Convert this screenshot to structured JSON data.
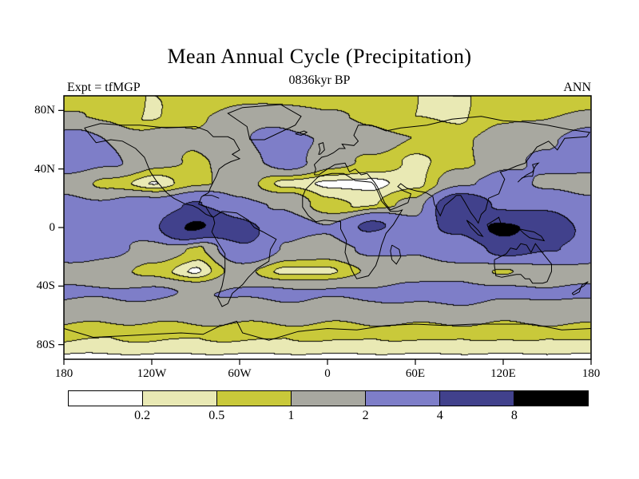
{
  "figure": {
    "title": "Mean Annual Cycle (Precipitation)",
    "subtitle": "0836kyr BP",
    "experiment_label": "Expt = tfMGP",
    "season_label": "ANN"
  },
  "axes": {
    "lat_ticks": [
      {
        "label": "80N",
        "lat": 80
      },
      {
        "label": "40N",
        "lat": 40
      },
      {
        "label": "0",
        "lat": 0
      },
      {
        "label": "40S",
        "lat": -40
      },
      {
        "label": "80S",
        "lat": -80
      }
    ],
    "lon_ticks": [
      {
        "label": "180",
        "lon": -180
      },
      {
        "label": "120W",
        "lon": -120
      },
      {
        "label": "60W",
        "lon": -60
      },
      {
        "label": "0",
        "lon": 0
      },
      {
        "label": "60E",
        "lon": 60
      },
      {
        "label": "120E",
        "lon": 120
      },
      {
        "label": "180",
        "lon": 180
      }
    ]
  },
  "colorbar": {
    "labels": [
      "0.2",
      "0.5",
      "1",
      "2",
      "4",
      "8"
    ]
  },
  "chart_data": {
    "type": "heatmap",
    "title": "Mean Annual Cycle (Precipitation)",
    "subtitle": "0836kyr BP",
    "experiment": "tfMGP",
    "season": "ANN",
    "projection": "equirectangular",
    "lon_range": [
      -180,
      180
    ],
    "lat_range": [
      -90,
      90
    ],
    "levels": [
      0.2,
      0.5,
      1,
      2,
      4,
      8
    ],
    "colors": [
      "#ffffff",
      "#e9e9b4",
      "#c9c93a",
      "#a8a8a0",
      "#7e7ec8",
      "#41418c",
      "#000000"
    ],
    "grid": {
      "lons": [
        -180,
        -150,
        -120,
        -90,
        -60,
        -30,
        0,
        30,
        60,
        90,
        120,
        150,
        180
      ],
      "lats": [
        90,
        75,
        60,
        45,
        30,
        15,
        0,
        -15,
        -30,
        -45,
        -60,
        -75,
        -90
      ],
      "values": [
        [
          0.55,
          0.5,
          0.5,
          0.6,
          0.7,
          0.7,
          0.6,
          0.5,
          0.5,
          0.5,
          0.5,
          0.55,
          0.55
        ],
        [
          1.1,
          0.9,
          0.45,
          0.9,
          1.4,
          1.6,
          1.1,
          0.9,
          0.5,
          0.45,
          0.9,
          1.0,
          1.1
        ],
        [
          2.6,
          2.0,
          1.4,
          1.1,
          1.8,
          2.6,
          1.9,
          1.4,
          1.0,
          0.9,
          1.2,
          1.8,
          2.6
        ],
        [
          2.9,
          2.2,
          1.3,
          0.9,
          1.4,
          2.6,
          1.4,
          0.8,
          0.4,
          0.8,
          1.6,
          2.4,
          2.9
        ],
        [
          1.4,
          0.8,
          0.18,
          0.9,
          1.3,
          0.35,
          0.15,
          0.12,
          0.4,
          1.8,
          2.6,
          1.7,
          1.4
        ],
        [
          2.6,
          2.2,
          2.8,
          4.2,
          2.4,
          1.9,
          0.7,
          0.4,
          1.3,
          6.0,
          3.8,
          3.2,
          2.6
        ],
        [
          3.2,
          2.6,
          3.4,
          8.6,
          5.2,
          2.6,
          2.1,
          4.4,
          3.1,
          4.6,
          9.0,
          6.2,
          3.2
        ],
        [
          2.8,
          2.4,
          1.4,
          0.9,
          3.6,
          1.9,
          1.4,
          2.4,
          2.1,
          3.1,
          4.6,
          4.2,
          2.8
        ],
        [
          1.6,
          1.3,
          0.8,
          0.15,
          1.3,
          0.4,
          0.4,
          1.1,
          1.3,
          1.6,
          0.9,
          1.6,
          1.6
        ],
        [
          2.2,
          2.1,
          2.3,
          1.9,
          2.1,
          2.3,
          2.1,
          2.2,
          2.6,
          2.6,
          2.3,
          2.1,
          2.2
        ],
        [
          1.3,
          1.2,
          1.2,
          1.3,
          1.2,
          1.3,
          1.2,
          1.3,
          1.3,
          1.3,
          1.2,
          1.3,
          1.3
        ],
        [
          0.55,
          0.5,
          0.55,
          0.5,
          0.55,
          0.5,
          0.55,
          0.5,
          0.55,
          0.5,
          0.55,
          0.5,
          0.55
        ],
        [
          0.15,
          0.15,
          0.15,
          0.15,
          0.15,
          0.15,
          0.15,
          0.15,
          0.15,
          0.15,
          0.15,
          0.15,
          0.15
        ]
      ]
    },
    "coastlines": [
      [
        [
          -166,
          68
        ],
        [
          -158,
          58
        ],
        [
          -148,
          60
        ],
        [
          -140,
          59
        ],
        [
          -131,
          54
        ],
        [
          -125,
          48
        ],
        [
          -121,
          38
        ],
        [
          -117,
          32
        ],
        [
          -110,
          24
        ],
        [
          -105,
          20
        ],
        [
          -97,
          16
        ],
        [
          -92,
          15
        ],
        [
          -88,
          13
        ],
        [
          -83,
          9
        ],
        [
          -78,
          7
        ],
        [
          -80,
          9
        ],
        [
          -83,
          14
        ],
        [
          -88,
          16
        ],
        [
          -86,
          21
        ],
        [
          -81,
          24
        ],
        [
          -80,
          27
        ],
        [
          -76,
          35
        ],
        [
          -74,
          40
        ],
        [
          -70,
          43
        ],
        [
          -66,
          45
        ],
        [
          -60,
          47
        ],
        [
          -65,
          50
        ],
        [
          -60,
          53
        ],
        [
          -64,
          60
        ],
        [
          -68,
          62
        ],
        [
          -78,
          62
        ],
        [
          -82,
          66
        ],
        [
          -90,
          69
        ],
        [
          -110,
          68
        ],
        [
          -128,
          70
        ],
        [
          -140,
          70
        ],
        [
          -155,
          71
        ],
        [
          -166,
          68
        ]
      ],
      [
        [
          -53,
          60
        ],
        [
          -43,
          60
        ],
        [
          -22,
          70
        ],
        [
          -18,
          76
        ],
        [
          -32,
          84
        ],
        [
          -58,
          82
        ],
        [
          -68,
          78
        ],
        [
          -55,
          69
        ],
        [
          -53,
          60
        ]
      ],
      [
        [
          -78,
          7
        ],
        [
          -72,
          11
        ],
        [
          -62,
          10
        ],
        [
          -54,
          5
        ],
        [
          -50,
          0
        ],
        [
          -44,
          -3
        ],
        [
          -35,
          -8
        ],
        [
          -39,
          -15
        ],
        [
          -40,
          -23
        ],
        [
          -48,
          -28
        ],
        [
          -54,
          -34
        ],
        [
          -58,
          -39
        ],
        [
          -65,
          -45
        ],
        [
          -68,
          -52
        ],
        [
          -72,
          -54
        ],
        [
          -75,
          -48
        ],
        [
          -72,
          -40
        ],
        [
          -70,
          -30
        ],
        [
          -70,
          -18
        ],
        [
          -75,
          -10
        ],
        [
          -79,
          -3
        ],
        [
          -77,
          3
        ],
        [
          -78,
          7
        ]
      ],
      [
        [
          -9,
          36
        ],
        [
          -8,
          40
        ],
        [
          -9,
          43
        ],
        [
          -4,
          48
        ],
        [
          0,
          49
        ],
        [
          4,
          51
        ],
        [
          8,
          54
        ],
        [
          12,
          54
        ],
        [
          10,
          57
        ],
        [
          18,
          56
        ],
        [
          21,
          59
        ],
        [
          18,
          63
        ],
        [
          21,
          70
        ],
        [
          30,
          70
        ],
        [
          40,
          66
        ],
        [
          50,
          68
        ],
        [
          68,
          70
        ],
        [
          85,
          74
        ],
        [
          105,
          76
        ],
        [
          120,
          73
        ],
        [
          135,
          72
        ],
        [
          150,
          70
        ],
        [
          165,
          67
        ],
        [
          179,
          65
        ],
        [
          177,
          62
        ],
        [
          162,
          61
        ],
        [
          157,
          53
        ],
        [
          151,
          59
        ],
        [
          143,
          55
        ],
        [
          135,
          44
        ],
        [
          129,
          42
        ],
        [
          122,
          39
        ],
        [
          118,
          38
        ],
        [
          121,
          33
        ],
        [
          117,
          23
        ],
        [
          110,
          20
        ],
        [
          108,
          12
        ],
        [
          105,
          9
        ],
        [
          103,
          3
        ],
        [
          101,
          6
        ],
        [
          98,
          10
        ],
        [
          94,
          17
        ],
        [
          91,
          22
        ],
        [
          88,
          22
        ],
        [
          86,
          20
        ],
        [
          80,
          15
        ],
        [
          77,
          8
        ],
        [
          73,
          16
        ],
        [
          72,
          21
        ],
        [
          67,
          24
        ],
        [
          61,
          25
        ],
        [
          57,
          26
        ],
        [
          54,
          27
        ],
        [
          50,
          30
        ],
        [
          48,
          28
        ],
        [
          52,
          25
        ],
        [
          57,
          23
        ],
        [
          55,
          17
        ],
        [
          48,
          14
        ],
        [
          43,
          12
        ],
        [
          39,
          17
        ],
        [
          34,
          28
        ],
        [
          32,
          31
        ],
        [
          27,
          37
        ],
        [
          23,
          36
        ],
        [
          19,
          40
        ],
        [
          15,
          38
        ],
        [
          12,
          44
        ],
        [
          5,
          43
        ],
        [
          0,
          40
        ],
        [
          -6,
          36
        ],
        [
          -9,
          36
        ]
      ],
      [
        [
          -6,
          35
        ],
        [
          3,
          37
        ],
        [
          11,
          37
        ],
        [
          19,
          32
        ],
        [
          30,
          31
        ],
        [
          32,
          29
        ],
        [
          35,
          23
        ],
        [
          37,
          18
        ],
        [
          43,
          11
        ],
        [
          48,
          11
        ],
        [
          51,
          12
        ],
        [
          45,
          2
        ],
        [
          40,
          -4
        ],
        [
          37,
          -12
        ],
        [
          35,
          -20
        ],
        [
          33,
          -26
        ],
        [
          28,
          -33
        ],
        [
          20,
          -35
        ],
        [
          17,
          -30
        ],
        [
          14,
          -23
        ],
        [
          12,
          -17
        ],
        [
          13,
          -9
        ],
        [
          9,
          -1
        ],
        [
          9,
          4
        ],
        [
          -2,
          5
        ],
        [
          -8,
          4
        ],
        [
          -13,
          8
        ],
        [
          -17,
          14
        ],
        [
          -17,
          21
        ],
        [
          -15,
          26
        ],
        [
          -10,
          31
        ],
        [
          -6,
          35
        ]
      ],
      [
        [
          114,
          -22
        ],
        [
          114,
          -26
        ],
        [
          115,
          -33
        ],
        [
          119,
          -34
        ],
        [
          124,
          -33
        ],
        [
          129,
          -32
        ],
        [
          132,
          -32
        ],
        [
          135,
          -35
        ],
        [
          138,
          -35
        ],
        [
          140,
          -38
        ],
        [
          147,
          -38
        ],
        [
          150,
          -37
        ],
        [
          153,
          -30
        ],
        [
          153,
          -25
        ],
        [
          149,
          -20
        ],
        [
          145,
          -15
        ],
        [
          142,
          -11
        ],
        [
          139,
          -17
        ],
        [
          136,
          -12
        ],
        [
          132,
          -11
        ],
        [
          129,
          -15
        ],
        [
          125,
          -14
        ],
        [
          122,
          -18
        ],
        [
          118,
          -20
        ],
        [
          114,
          -22
        ]
      ],
      [
        [
          -180,
          -69
        ],
        [
          -160,
          -75
        ],
        [
          -140,
          -74
        ],
        [
          -120,
          -73
        ],
        [
          -100,
          -72
        ],
        [
          -85,
          -73
        ],
        [
          -75,
          -68
        ],
        [
          -62,
          -64
        ],
        [
          -58,
          -72
        ],
        [
          -40,
          -77
        ],
        [
          -20,
          -71
        ],
        [
          0,
          -69
        ],
        [
          20,
          -70
        ],
        [
          40,
          -67
        ],
        [
          60,
          -66
        ],
        [
          80,
          -67
        ],
        [
          100,
          -66
        ],
        [
          120,
          -66
        ],
        [
          140,
          -66
        ],
        [
          160,
          -70
        ],
        [
          180,
          -69
        ]
      ],
      [
        [
          44,
          -12
        ],
        [
          49,
          -15
        ],
        [
          50,
          -20
        ],
        [
          47,
          -25
        ],
        [
          44,
          -22
        ],
        [
          43,
          -16
        ],
        [
          44,
          -12
        ]
      ],
      [
        [
          130,
          31
        ],
        [
          133,
          34
        ],
        [
          137,
          35
        ],
        [
          140,
          35
        ],
        [
          141,
          40
        ],
        [
          140,
          43
        ],
        [
          144,
          44
        ],
        [
          142,
          42
        ],
        [
          140,
          38
        ],
        [
          136,
          36
        ],
        [
          132,
          33
        ],
        [
          130,
          31
        ]
      ],
      [
        [
          109,
          2
        ],
        [
          114,
          5
        ],
        [
          117,
          7
        ],
        [
          119,
          1
        ],
        [
          116,
          -3
        ],
        [
          111,
          -3
        ],
        [
          109,
          2
        ]
      ],
      [
        [
          131,
          -1
        ],
        [
          136,
          -2
        ],
        [
          141,
          -3
        ],
        [
          146,
          -6
        ],
        [
          148,
          -9
        ],
        [
          143,
          -8
        ],
        [
          138,
          -7
        ],
        [
          134,
          -4
        ],
        [
          131,
          -1
        ]
      ],
      [
        [
          95,
          5
        ],
        [
          99,
          2
        ],
        [
          103,
          -2
        ],
        [
          106,
          -6
        ],
        [
          103,
          -5
        ],
        [
          98,
          0
        ],
        [
          95,
          5
        ]
      ],
      [
        [
          -5,
          50
        ],
        [
          -2,
          53
        ],
        [
          -3,
          58
        ],
        [
          -6,
          57
        ],
        [
          -5,
          53
        ],
        [
          -6,
          50
        ],
        [
          -5,
          50
        ]
      ],
      [
        [
          -22,
          64
        ],
        [
          -16,
          66
        ],
        [
          -14,
          65
        ],
        [
          -18,
          63
        ],
        [
          -22,
          64
        ]
      ],
      [
        [
          167,
          -45
        ],
        [
          170,
          -43
        ],
        [
          173,
          -41
        ],
        [
          172,
          -44
        ],
        [
          168,
          -46
        ],
        [
          167,
          -45
        ]
      ],
      [
        [
          173,
          -41
        ],
        [
          175,
          -40
        ],
        [
          178,
          -37
        ],
        [
          176,
          -38
        ],
        [
          174,
          -39
        ],
        [
          173,
          -41
        ]
      ],
      [
        [
          -85,
          22
        ],
        [
          -79,
          22
        ],
        [
          -74,
          20
        ]
      ]
    ]
  }
}
